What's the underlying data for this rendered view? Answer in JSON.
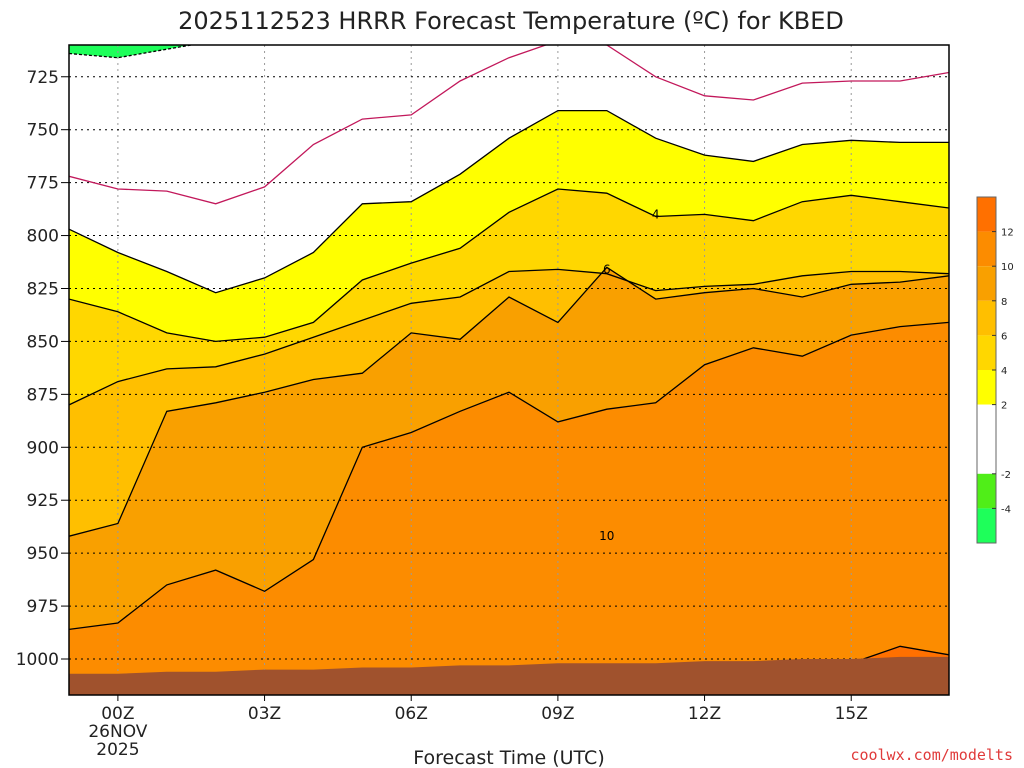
{
  "chart_data": {
    "type": "heatmap",
    "title": "2025112523 HRRR Forecast Temperature (ºC) for KBED",
    "xlabel": "Forecast Time (UTC)",
    "ylabel": "",
    "credit": "coolwx.com/modelts",
    "x_ticks": [
      {
        "hour": 0,
        "lines": [
          "00Z",
          "26NOV",
          "2025"
        ]
      },
      {
        "hour": 3,
        "lines": [
          "03Z"
        ]
      },
      {
        "hour": 6,
        "lines": [
          "06Z"
        ]
      },
      {
        "hour": 9,
        "lines": [
          "09Z"
        ]
      },
      {
        "hour": 12,
        "lines": [
          "12Z"
        ]
      },
      {
        "hour": 15,
        "lines": [
          "15Z"
        ]
      }
    ],
    "xlim": [
      -1,
      17
    ],
    "y_ticks": [
      725,
      750,
      775,
      800,
      825,
      850,
      875,
      900,
      925,
      950,
      975,
      1000
    ],
    "ylim": [
      710,
      1017
    ],
    "hours": [
      -1,
      0,
      1,
      2,
      3,
      4,
      5,
      6,
      7,
      8,
      9,
      10,
      11,
      12,
      13,
      14,
      15,
      16,
      17
    ],
    "contour_levels": [
      -4,
      -2,
      0,
      2,
      4,
      6,
      8,
      10,
      12
    ],
    "isotherms": [
      {
        "level": -2,
        "dashed": true,
        "color": "#000000",
        "p": [
          714,
          716,
          712,
          708,
          null,
          null,
          null,
          null,
          null,
          null,
          null,
          null,
          null,
          null,
          null,
          null,
          null,
          null,
          null
        ]
      },
      {
        "level": 0,
        "dashed": false,
        "color": "#c2185b",
        "p": [
          772,
          778,
          779,
          785,
          777,
          757,
          745,
          743,
          727,
          716,
          708,
          710,
          725,
          734,
          736,
          728,
          727,
          727,
          723
        ]
      },
      {
        "level": 2,
        "dashed": false,
        "color": "#000000",
        "p": [
          797,
          808,
          817,
          827,
          820,
          808,
          785,
          784,
          771,
          754,
          741,
          741,
          754,
          762,
          765,
          757,
          755,
          756,
          756
        ]
      },
      {
        "level": 4,
        "dashed": false,
        "color": "#000000",
        "p": [
          830,
          836,
          846,
          850,
          848,
          841,
          821,
          813,
          806,
          789,
          778,
          780,
          791,
          790,
          793,
          784,
          781,
          784,
          787
        ]
      },
      {
        "level": 6,
        "dashed": false,
        "color": "#000000",
        "p": [
          880,
          869,
          863,
          862,
          856,
          848,
          840,
          832,
          829,
          817,
          816,
          818,
          826,
          824,
          823,
          819,
          817,
          817,
          818
        ]
      },
      {
        "level": 8,
        "dashed": false,
        "color": "#000000",
        "p": [
          942,
          936,
          883,
          879,
          874,
          868,
          865,
          846,
          849,
          829,
          841,
          815,
          830,
          827,
          825,
          829,
          823,
          822,
          819
        ]
      },
      {
        "level": 10,
        "dashed": false,
        "color": "#000000",
        "p": [
          986,
          983,
          965,
          958,
          968,
          953,
          900,
          893,
          883,
          874,
          888,
          882,
          879,
          861,
          853,
          857,
          847,
          843,
          841
        ]
      },
      {
        "level": 12,
        "dashed": false,
        "color": "#000000",
        "p": [
          1017,
          1017,
          1017,
          1017,
          1017,
          1017,
          1017,
          1017,
          1017,
          1017,
          1017,
          1017,
          1017,
          1017,
          1017,
          1017,
          1002,
          994,
          998
        ]
      }
    ],
    "contour_labels": [
      {
        "text": "4",
        "hour": 11.0,
        "p": 790
      },
      {
        "text": "6",
        "hour": 10.0,
        "p": 816
      },
      {
        "text": "10",
        "hour": 10.0,
        "p": 942
      }
    ],
    "colorbar": {
      "ticks": [
        "-4",
        "-2",
        "2",
        "4",
        "6",
        "8",
        "10",
        "12"
      ],
      "bands": [
        {
          "from": -6,
          "to": -4,
          "color": "#1eff5a"
        },
        {
          "from": -4,
          "to": -2,
          "color": "#50ee18"
        },
        {
          "from": -2,
          "to": 0,
          "color": "#ffffff"
        },
        {
          "from": 0,
          "to": 2,
          "color": "#ffffff"
        },
        {
          "from": 2,
          "to": 4,
          "color": "#ffff00"
        },
        {
          "from": 4,
          "to": 6,
          "color": "#ffd700"
        },
        {
          "from": 6,
          "to": 8,
          "color": "#ffbf00"
        },
        {
          "from": 8,
          "to": 10,
          "color": "#f9a000"
        },
        {
          "from": 10,
          "to": 12,
          "color": "#fc8c00"
        },
        {
          "from": 12,
          "to": 14,
          "color": "#ff7000"
        }
      ]
    },
    "ground_color": "#a0522d",
    "surface_pressure_hpa": [
      1007,
      1007,
      1006,
      1006,
      1005,
      1005,
      1004,
      1004,
      1003,
      1003,
      1002,
      1002,
      1002,
      1001,
      1001,
      1000,
      1000,
      999,
      999
    ]
  }
}
